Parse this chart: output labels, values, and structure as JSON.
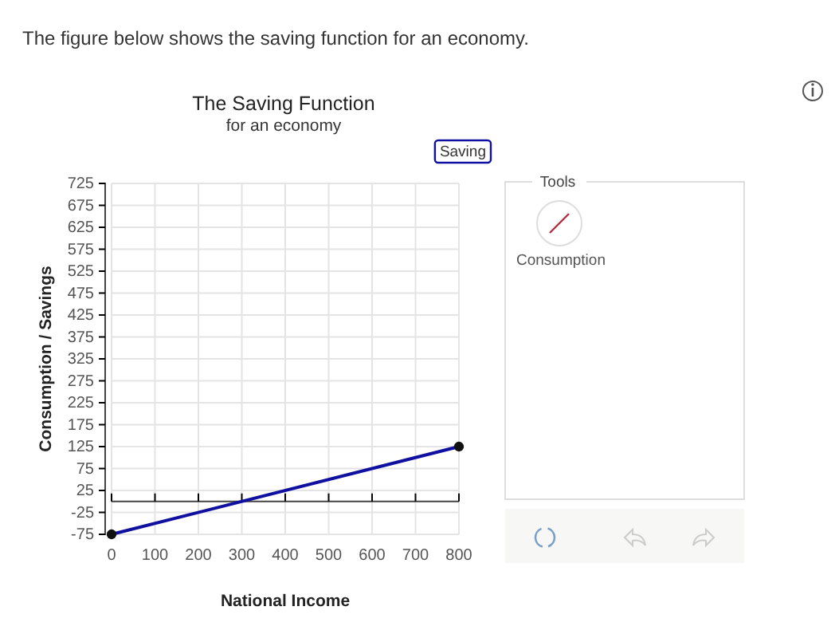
{
  "chart_data": {
    "type": "line",
    "title": "The Saving Function",
    "subtitle": "for an economy",
    "xlabel": "National Income",
    "ylabel": "Consumption / Savings",
    "annotations": [
      "The figure below shows the saving function for an economy.",
      "Tools",
      "Consumption"
    ],
    "x": [
      0,
      800
    ],
    "series": [
      {
        "name": "Saving",
        "color": "#1010a0",
        "values": [
          -75,
          125
        ]
      }
    ],
    "xlim": [
      0,
      800
    ],
    "xticks": [
      0,
      100,
      200,
      300,
      400,
      500,
      600,
      700,
      800
    ],
    "ylim": [
      -75,
      725
    ],
    "yticks": [
      -75,
      -25,
      25,
      75,
      125,
      175,
      225,
      275,
      325,
      375,
      425,
      475,
      525,
      575,
      625,
      675,
      725
    ],
    "grid": true,
    "legend": "top right",
    "marker": "circle",
    "line_style": "solid"
  }
}
